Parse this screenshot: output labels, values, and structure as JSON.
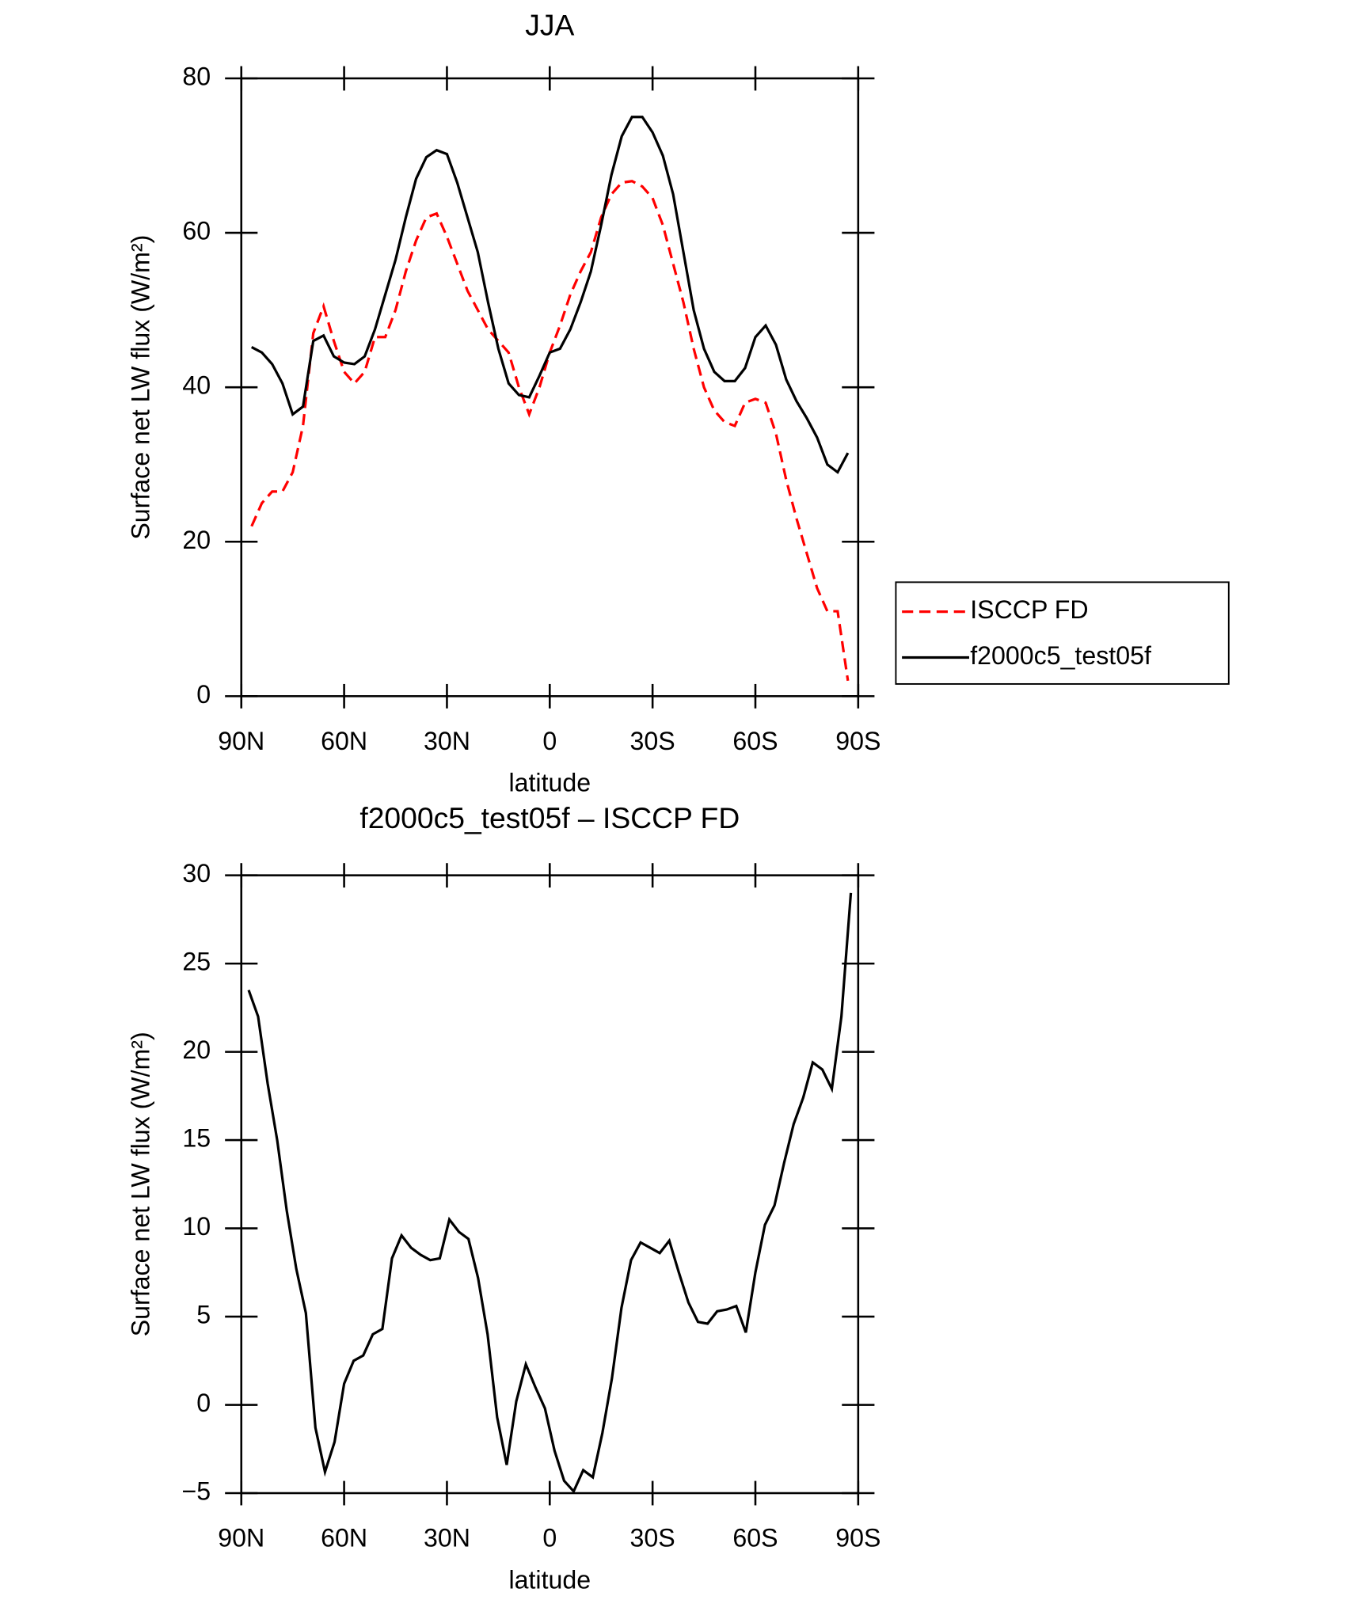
{
  "chart_data": [
    {
      "type": "line",
      "title": "JJA",
      "xlabel": "latitude",
      "ylabel": "Surface net LW flux (W/m²)",
      "xlim": [
        -90,
        90
      ],
      "xticks": [
        {
          "value": -90,
          "label": "90N"
        },
        {
          "value": -60,
          "label": "60N"
        },
        {
          "value": -30,
          "label": "30N"
        },
        0,
        {
          "value": 30,
          "label": "30S"
        },
        {
          "value": 60,
          "label": "60S"
        },
        {
          "value": 90,
          "label": "90S"
        }
      ],
      "ylim": [
        0,
        80
      ],
      "yticks": [
        0,
        20,
        40,
        60,
        80
      ],
      "legend": "right",
      "x": [
        -87,
        -84,
        -81,
        -78,
        -75,
        -72,
        -69,
        -66,
        -63,
        -60,
        -57,
        -54,
        -51,
        -48,
        -45,
        -42,
        -39,
        -36,
        -33,
        -30,
        -27,
        -24,
        -21,
        -18,
        -15,
        -12,
        -9,
        -6,
        -3,
        0,
        3,
        6,
        9,
        12,
        15,
        18,
        21,
        24,
        27,
        30,
        33,
        36,
        39,
        42,
        45,
        48,
        51,
        54,
        57,
        60,
        63,
        66,
        69,
        72,
        75,
        78,
        81,
        84,
        87
      ],
      "series": [
        {
          "name": "ISCCP FD",
          "color": "#ff0000",
          "dashed": true,
          "values": [
            22,
            25,
            26.5,
            26.5,
            29,
            35,
            47,
            50.5,
            46,
            42,
            40.5,
            42,
            46.5,
            46.5,
            50,
            55,
            59,
            62,
            62.5,
            59.5,
            56,
            52.5,
            50,
            47.5,
            46,
            44.5,
            40,
            36.5,
            40,
            44.5,
            48,
            52,
            55,
            57.5,
            62,
            65,
            66.5,
            66.7,
            66,
            64.5,
            61,
            56,
            51,
            45,
            40,
            37,
            35.5,
            35,
            38,
            38.5,
            38,
            34,
            28,
            23,
            18.5,
            14,
            11,
            11,
            2
          ]
        },
        {
          "name": "f2000c5_test05f",
          "color": "#000000",
          "dashed": false,
          "values": [
            45.2,
            44.5,
            43,
            40.5,
            36.5,
            37.5,
            46,
            46.7,
            44,
            43.2,
            43,
            44,
            47.5,
            52,
            56.5,
            62,
            67,
            69.8,
            70.7,
            70.2,
            66.5,
            62,
            57.5,
            51,
            45,
            40.5,
            39,
            38.7,
            41.5,
            44.5,
            45,
            47.5,
            51,
            55,
            61,
            67.5,
            72.5,
            75,
            75,
            73,
            70,
            65,
            57.5,
            50,
            45,
            42,
            40.8,
            40.8,
            42.5,
            46.5,
            48,
            45.5,
            41,
            38.2,
            36,
            33.5,
            30,
            29,
            31.5
          ]
        }
      ]
    },
    {
      "type": "line",
      "title": "f2000c5_test05f – ISCCP FD",
      "xlabel": "latitude",
      "ylabel": "Surface net LW flux (W/m²)",
      "xlim": [
        -90,
        90
      ],
      "xticks": [
        {
          "value": -90,
          "label": "90N"
        },
        {
          "value": -60,
          "label": "60N"
        },
        {
          "value": -30,
          "label": "30N"
        },
        0,
        {
          "value": 30,
          "label": "30S"
        },
        {
          "value": 60,
          "label": "60S"
        },
        {
          "value": 90,
          "label": "90S"
        }
      ],
      "ylim": [
        -5,
        30
      ],
      "yticks": [
        {
          "value": -5,
          "label": "−5"
        },
        0,
        5,
        10,
        15,
        20,
        25,
        30
      ],
      "x": [
        -87.86,
        -85.1,
        -82.31,
        -79.53,
        -76.74,
        -73.95,
        -71.16,
        -68.37,
        -65.58,
        -62.79,
        -60,
        -57.21,
        -54.42,
        -51.63,
        -48.84,
        -46.04,
        -43.25,
        -40.46,
        -37.67,
        -34.88,
        -32.09,
        -29.3,
        -26.51,
        -23.72,
        -20.93,
        -18.14,
        -15.35,
        -12.56,
        -9.77,
        -6.98,
        -4.19,
        -1.4,
        1.4,
        4.19,
        6.98,
        9.77,
        12.56,
        15.35,
        18.14,
        20.93,
        23.72,
        26.51,
        29.3,
        32.09,
        34.88,
        37.67,
        40.46,
        43.25,
        46.04,
        48.84,
        51.63,
        54.42,
        57.21,
        60,
        62.79,
        65.58,
        68.37,
        71.16,
        73.95,
        76.74,
        79.53,
        82.31,
        85.1,
        87.86
      ],
      "series": [
        {
          "color": "#000000",
          "dashed": false,
          "values": [
            23.5,
            22,
            18.2,
            15,
            11,
            7.7,
            5.2,
            -1.3,
            -3.8,
            -2.1,
            1.2,
            2.5,
            2.8,
            4,
            4.3,
            8.3,
            9.6,
            8.9,
            8.5,
            8.2,
            8.3,
            10.5,
            9.8,
            9.4,
            7.2,
            4,
            -0.7,
            -3.4,
            0.2,
            2.3,
            1,
            -0.2,
            -2.6,
            -4.3,
            -4.9,
            -3.7,
            -4.1,
            -1.6,
            1.5,
            5.5,
            8.2,
            9.2,
            8.9,
            8.6,
            9.3,
            7.5,
            5.8,
            4.7,
            4.6,
            5.3,
            5.4,
            5.6,
            4.1,
            7.5,
            10.2,
            11.3,
            13.7,
            15.9,
            17.4,
            19.4,
            19,
            17.9,
            22,
            29
          ]
        }
      ]
    }
  ]
}
